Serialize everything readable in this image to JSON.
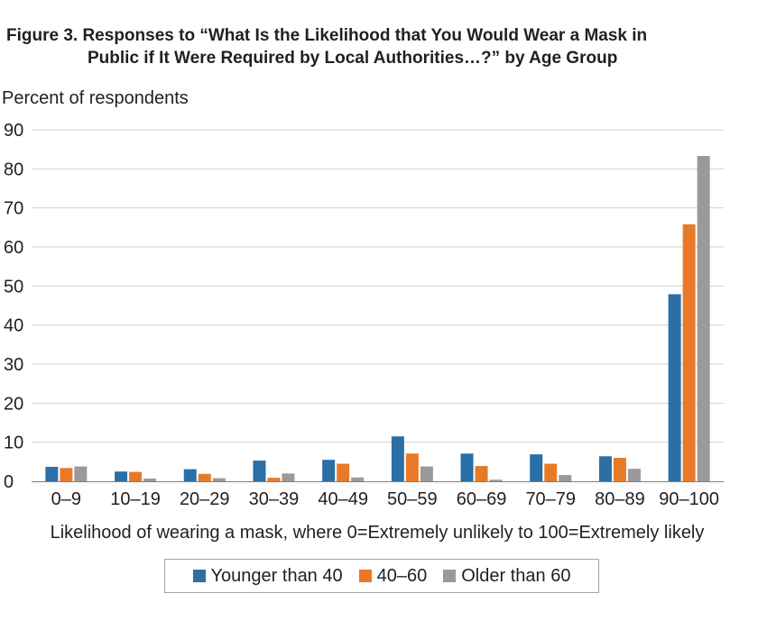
{
  "title_line1": "Figure 3. Responses to “What Is the Likelihood that You Would Wear a Mask in",
  "title_line2": "Public if It Were Required by Local Authorities…?” by Age Group",
  "chart_data": {
    "type": "bar",
    "title": "Figure 3. Responses to “What Is the Likelihood that You Would Wear a Mask in Public if It Were Required by Local Authorities…?” by Age Group",
    "ylabel": "Percent of respondents",
    "xlabel": "Likelihood of wearing a mask, where 0=Extremely unlikely to 100=Extremely likely",
    "ylim": [
      0,
      90
    ],
    "yticks": [
      0,
      10,
      20,
      30,
      40,
      50,
      60,
      70,
      80,
      90
    ],
    "grid": true,
    "legend_position": "bottom",
    "categories": [
      "0–9",
      "10–19",
      "20–29",
      "30–39",
      "40–49",
      "50–59",
      "60–69",
      "70–79",
      "80–89",
      "90–100"
    ],
    "series": [
      {
        "name": "Younger than 40",
        "color": "#2a6fa6",
        "values": [
          3.7,
          2.5,
          3.1,
          5.3,
          5.5,
          11.5,
          7.1,
          6.9,
          6.4,
          47.9
        ]
      },
      {
        "name": "40–60",
        "color": "#e87a27",
        "values": [
          3.4,
          2.4,
          1.9,
          0.9,
          4.5,
          7.1,
          3.9,
          4.5,
          6.0,
          65.8
        ]
      },
      {
        "name": "Older than 60",
        "color": "#9a9a9a",
        "values": [
          3.8,
          0.7,
          0.8,
          2.0,
          1.0,
          3.8,
          0.4,
          1.6,
          3.2,
          83.3
        ]
      }
    ]
  }
}
